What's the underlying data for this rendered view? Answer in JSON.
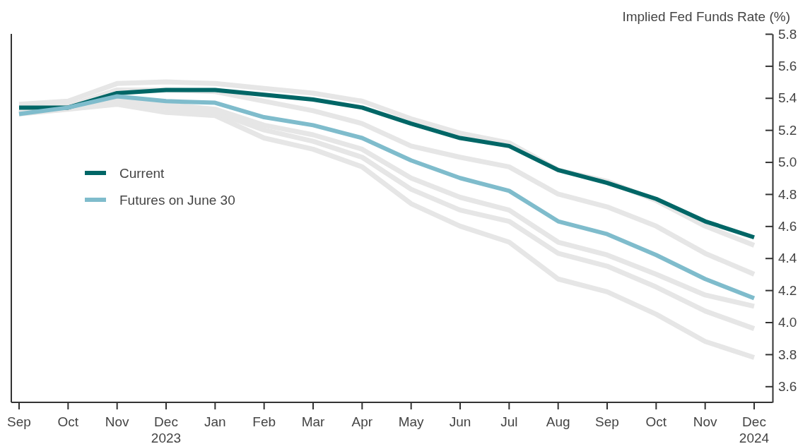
{
  "chart_data": {
    "type": "line",
    "ylabel": "Implied Fed Funds Rate (%)",
    "categories": [
      "Sep",
      "Oct",
      "Nov",
      "Dec 2023",
      "Jan",
      "Feb",
      "Mar",
      "Apr",
      "May",
      "Jun",
      "Jul",
      "Aug",
      "Sep",
      "Oct",
      "Nov",
      "Dec 2024"
    ],
    "ylim": [
      3.5,
      5.8
    ],
    "yticks": [
      3.6,
      3.8,
      {
        "value": 4,
        "label": "4.0"
      },
      4.2,
      4.4,
      4.6,
      4.8,
      {
        "value": 5,
        "label": "5.0"
      },
      5.2,
      5.4,
      5.6,
      5.8
    ],
    "grid": false,
    "legend": "left",
    "marker": "none",
    "line_style": "solid",
    "series": [
      {
        "color": "#e6e6e6",
        "values": [
          5.3,
          5.33,
          5.36,
          5.31,
          5.29,
          5.15,
          5.08,
          4.97,
          4.74,
          4.6,
          4.5,
          4.27,
          4.19,
          4.05,
          3.88,
          3.78
        ]
      },
      {
        "color": "#e6e6e6",
        "values": [
          5.31,
          5.34,
          5.38,
          5.34,
          5.31,
          5.2,
          5.13,
          5.03,
          4.83,
          4.7,
          4.63,
          4.43,
          4.35,
          4.22,
          4.07,
          3.96
        ]
      },
      {
        "color": "#e6e6e6",
        "values": [
          5.31,
          5.34,
          5.39,
          5.36,
          5.33,
          5.23,
          5.17,
          5.08,
          4.9,
          4.78,
          4.7,
          4.5,
          4.42,
          4.3,
          4.17,
          4.1
        ]
      },
      {
        "color": "#e6e6e6",
        "values": [
          5.33,
          5.35,
          5.45,
          5.45,
          5.44,
          5.38,
          5.32,
          5.24,
          5.1,
          5.03,
          4.97,
          4.8,
          4.72,
          4.6,
          4.43,
          4.3
        ]
      },
      {
        "color": "#e6e6e6",
        "values": [
          5.36,
          5.38,
          5.49,
          5.5,
          5.49,
          5.46,
          5.43,
          5.38,
          5.27,
          5.18,
          5.12,
          4.95,
          4.88,
          4.76,
          4.6,
          4.48
        ]
      },
      {
        "name": "Current",
        "color": "#006666",
        "values": [
          5.34,
          5.34,
          5.43,
          5.45,
          5.45,
          5.42,
          5.39,
          5.34,
          5.24,
          5.15,
          5.1,
          4.95,
          4.87,
          4.77,
          4.63,
          4.53
        ]
      },
      {
        "name": "Futures on June 30",
        "color": "#7fbccc",
        "values": [
          5.3,
          5.34,
          5.41,
          5.38,
          5.37,
          5.28,
          5.23,
          5.15,
          5.01,
          4.9,
          4.82,
          4.63,
          4.55,
          4.42,
          4.27,
          4.15
        ]
      }
    ]
  }
}
